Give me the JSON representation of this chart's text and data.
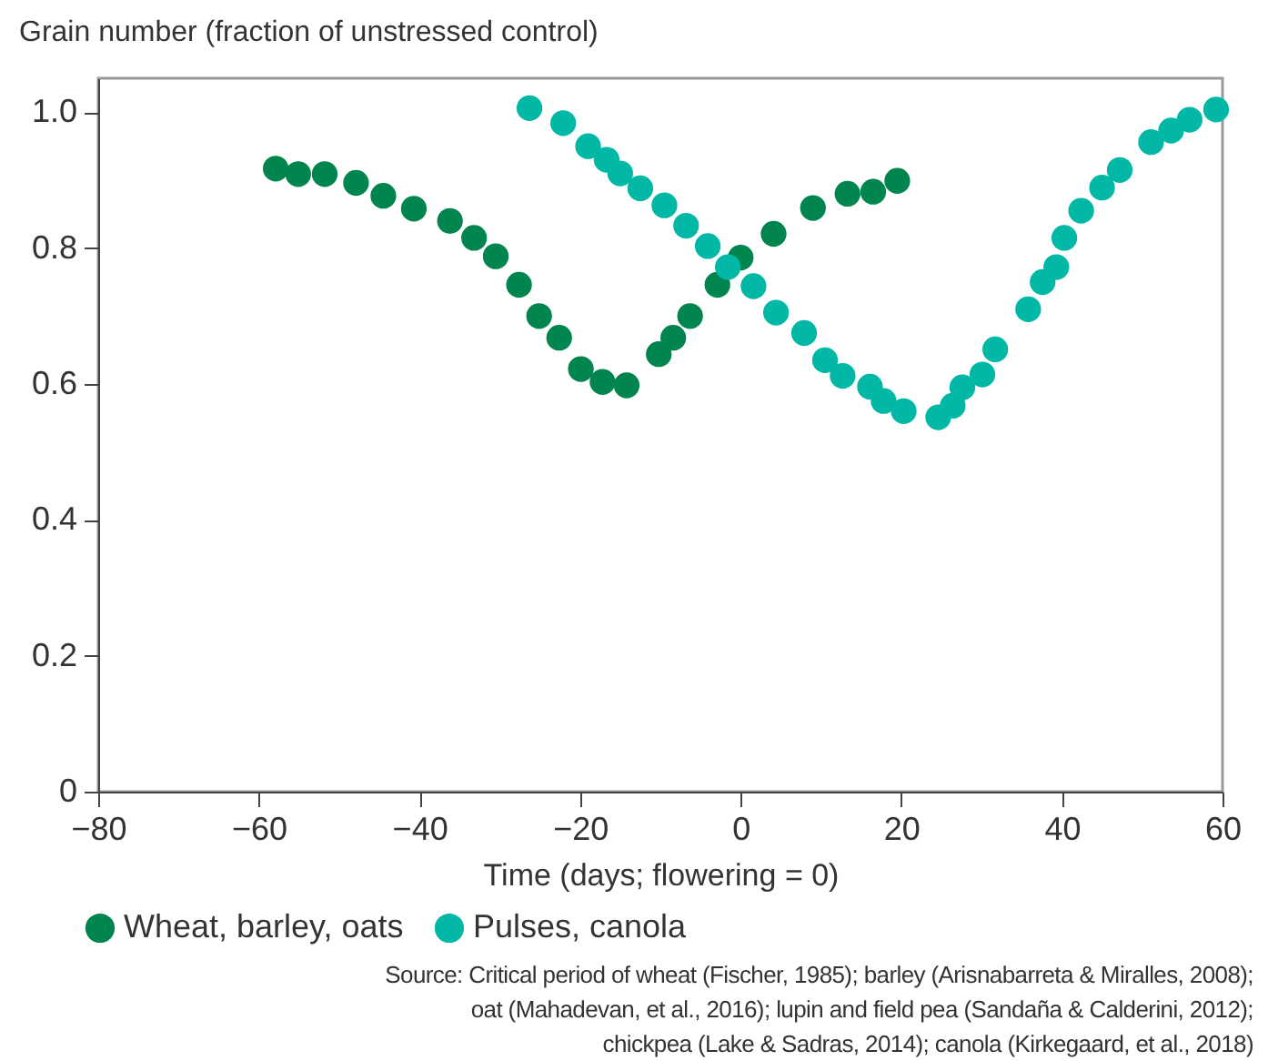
{
  "chart_data": {
    "type": "scatter",
    "ylabel": "Grain number (fraction of unstressed control)",
    "xlabel": "Time (days; flowering = 0)",
    "xlim": [
      -80,
      60
    ],
    "xticks": [
      {
        "value": -80,
        "label": "−80"
      },
      {
        "value": -60,
        "label": "−60"
      },
      {
        "value": -40,
        "label": "−40"
      },
      {
        "value": -20,
        "label": "−20"
      },
      0,
      20,
      40,
      60
    ],
    "ylim": [
      0,
      1.05
    ],
    "yticks": [
      0,
      {
        "value": 0.2,
        "label": "0.2"
      },
      {
        "value": 0.4,
        "label": "0.4"
      },
      {
        "value": 0.6,
        "label": "0.6"
      },
      {
        "value": 0.8,
        "label": "0.8"
      },
      {
        "value": 1,
        "label": "1.0"
      }
    ],
    "grid": false,
    "legend": "bottom",
    "marker": "circle",
    "series": [
      {
        "name": "Wheat, barley, oats",
        "color": "#00854f",
        "x": [
          -57.9,
          -55.1,
          -51.8,
          -47.9,
          -44.5,
          -40.7,
          -36.2,
          -33.2,
          -30.5,
          -27.6,
          -25.1,
          -22.6,
          -19.9,
          -17.2,
          -14.2,
          -10.2,
          -8.4,
          -6.3,
          -2.9,
          0,
          4.1,
          9.0,
          13.3,
          16.5,
          19.5
        ],
        "values": [
          0.917,
          0.909,
          0.909,
          0.896,
          0.877,
          0.858,
          0.84,
          0.815,
          0.788,
          0.746,
          0.7,
          0.668,
          0.622,
          0.603,
          0.598,
          0.644,
          0.668,
          0.7,
          0.746,
          0.786,
          0.821,
          0.859,
          0.88,
          0.883,
          0.899
        ]
      },
      {
        "name": "Pulses, canola",
        "color": "#00b8a5",
        "x": [
          -26.3,
          -22.1,
          -19.0,
          -16.7,
          -15.0,
          -12.5,
          -9.5,
          -6.8,
          -4.1,
          -1.6,
          1.6,
          4.4,
          7.9,
          10.5,
          12.7,
          16.1,
          17.8,
          20.3,
          24.6,
          26.4,
          27.6,
          30.1,
          31.7,
          35.8,
          37.6,
          39.3,
          40.3,
          42.4,
          45.0,
          47.2,
          51.1,
          53.6,
          55.9,
          59.2
        ],
        "values": [
          1.006,
          0.984,
          0.95,
          0.93,
          0.91,
          0.888,
          0.863,
          0.833,
          0.803,
          0.772,
          0.744,
          0.705,
          0.675,
          0.635,
          0.612,
          0.596,
          0.575,
          0.56,
          0.551,
          0.568,
          0.595,
          0.614,
          0.651,
          0.71,
          0.75,
          0.772,
          0.815,
          0.855,
          0.889,
          0.915,
          0.956,
          0.973,
          0.989,
          1.004
        ]
      }
    ],
    "annotations": [
      "Source: Critical period of wheat (Fischer, 1985); barley (Arisnabarreta & Miralles, 2008);",
      "oat (Mahadevan, et al., 2016); lupin and field pea (Sandaña & Calderini, 2012);",
      "chickpea (Lake & Sadras, 2014); canola (Kirkegaard, et al., 2018)"
    ]
  }
}
